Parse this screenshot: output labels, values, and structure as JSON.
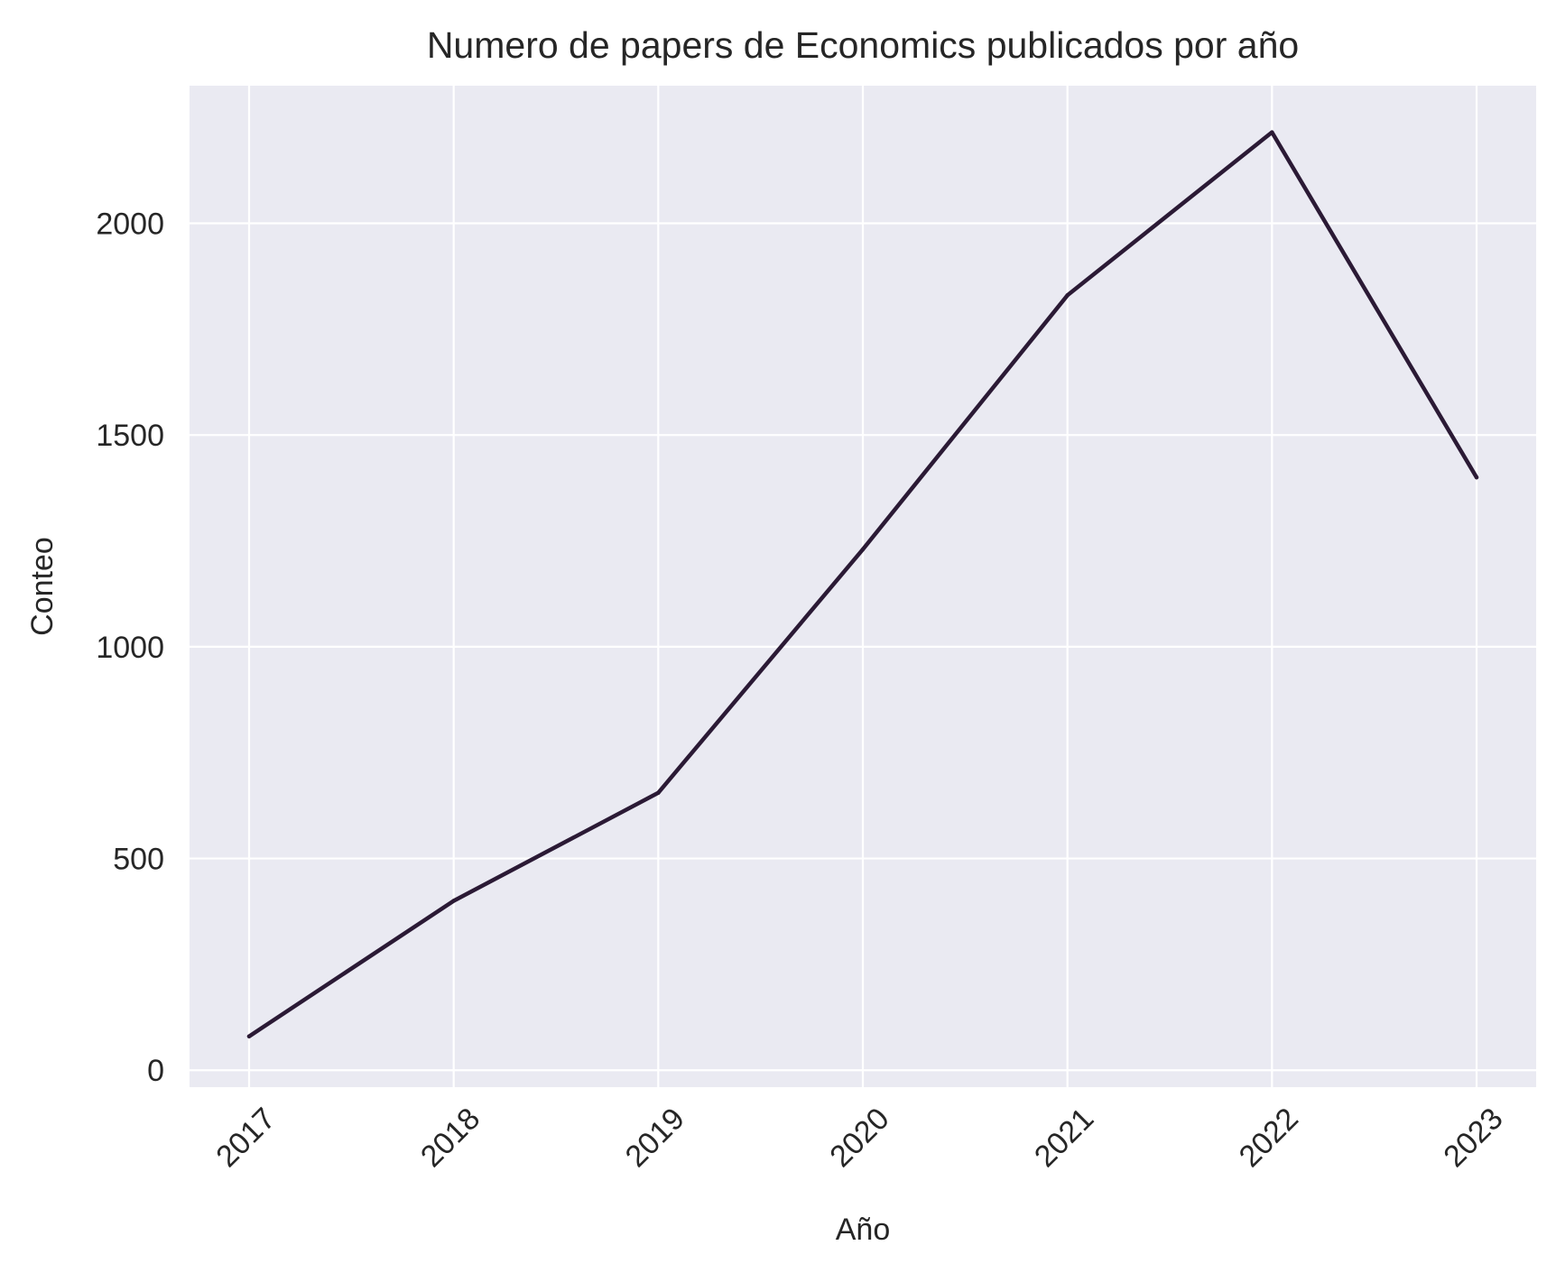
{
  "chart_data": {
    "type": "line",
    "title": "Numero de papers de Economics publicados por año",
    "xlabel": "Año",
    "ylabel": "Conteo",
    "categories": [
      "2017",
      "2018",
      "2019",
      "2020",
      "2021",
      "2022",
      "2023"
    ],
    "series": [
      {
        "values": [
          80,
          400,
          655,
          1230,
          1830,
          2215,
          1400
        ],
        "color": "#2b1a35"
      }
    ],
    "yticks": [
      0,
      500,
      1000,
      1500,
      2000
    ],
    "ylim": [
      -40,
      2325
    ],
    "grid": true,
    "legend": "none",
    "background_color": "#eaeaf2",
    "grid_color": "#ffffff"
  }
}
